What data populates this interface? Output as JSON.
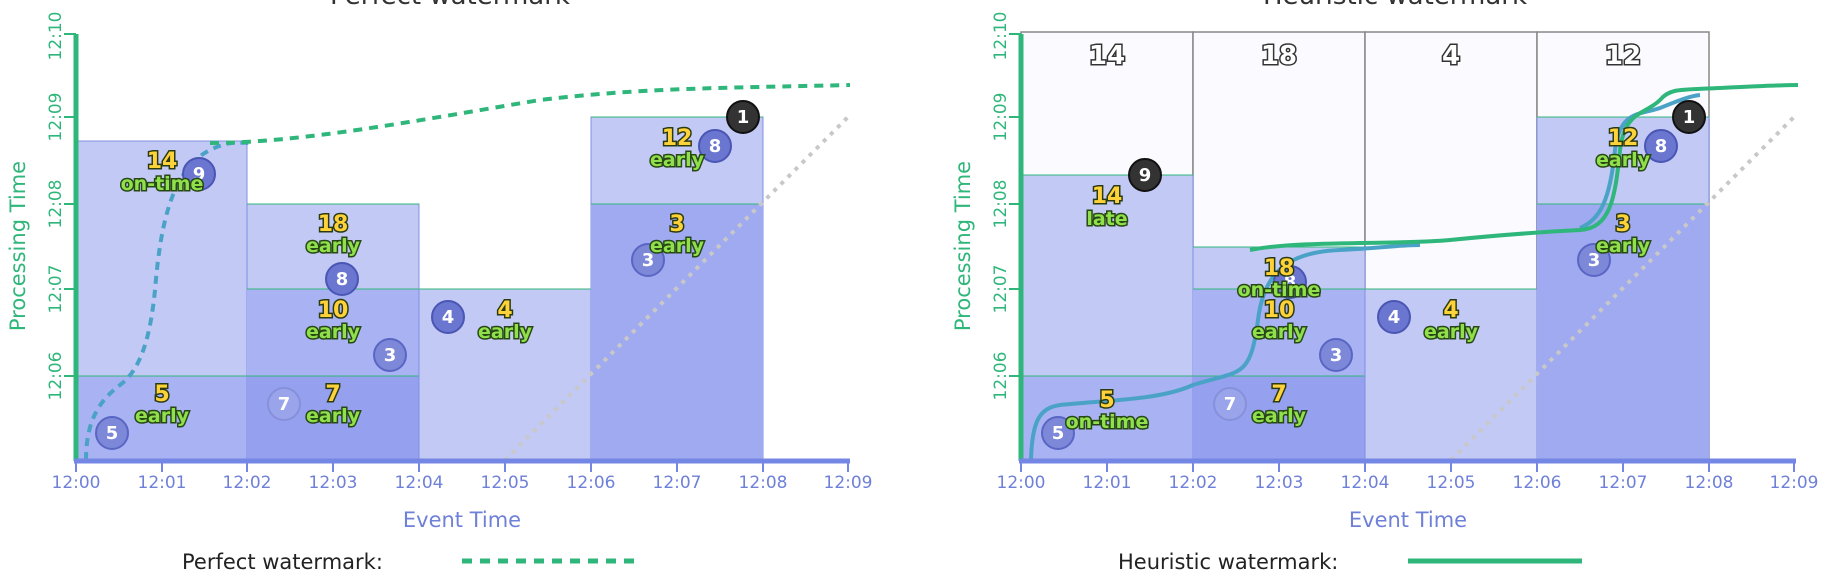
{
  "left": {
    "title": "Perfect watermark",
    "x_ticks": [
      "12:00",
      "12:01",
      "12:02",
      "12:03",
      "12:04",
      "12:05",
      "12:06",
      "12:07",
      "12:08",
      "12:09"
    ],
    "y_ticks": [
      "12:06",
      "12:07",
      "12:08",
      "12:09",
      "12:10"
    ],
    "x_label": "Event Time",
    "y_label": "Processing Time",
    "legend_label": "Perfect watermark:",
    "datapoints": [
      "5",
      "9",
      "7",
      "8",
      "3",
      "4",
      "3",
      "8",
      "1"
    ],
    "results": [
      {
        "num": "5",
        "status": "early"
      },
      {
        "num": "14",
        "status": "on-time"
      },
      {
        "num": "7",
        "status": "early"
      },
      {
        "num": "10",
        "status": "early"
      },
      {
        "num": "18",
        "status": "early"
      },
      {
        "num": "4",
        "status": "early"
      },
      {
        "num": "3",
        "status": "early"
      },
      {
        "num": "12",
        "status": "early"
      }
    ]
  },
  "right": {
    "title": "Heuristic watermark",
    "x_ticks": [
      "12:00",
      "12:01",
      "12:02",
      "12:03",
      "12:04",
      "12:05",
      "12:06",
      "12:07",
      "12:08",
      "12:09"
    ],
    "y_ticks": [
      "12:06",
      "12:07",
      "12:08",
      "12:09",
      "12:10"
    ],
    "x_label": "Event Time",
    "y_label": "Processing Time",
    "legend_label": "Heuristic watermark:",
    "pane_sums": [
      "14",
      "18",
      "4",
      "12"
    ],
    "datapoints": [
      "5",
      "9",
      "7",
      "8",
      "3",
      "4",
      "3",
      "8",
      "1"
    ],
    "results": [
      {
        "num": "5",
        "status": "on-time"
      },
      {
        "num": "14",
        "status": "late"
      },
      {
        "num": "7",
        "status": "early"
      },
      {
        "num": "10",
        "status": "early"
      },
      {
        "num": "18",
        "status": "on-time"
      },
      {
        "num": "4",
        "status": "early"
      },
      {
        "num": "3",
        "status": "early"
      },
      {
        "num": "12",
        "status": "early"
      }
    ]
  },
  "colors": {
    "pane_light": "#c3c9f5",
    "pane_dark": "#9fa9f0",
    "pane_border": "#8090e2",
    "axis_x": "#7587e4",
    "axis_y": "#2fb67a",
    "watermark": "#2fb67a",
    "input_line": "#4aa3c6",
    "ideal_line": "#c8c8c8"
  }
}
